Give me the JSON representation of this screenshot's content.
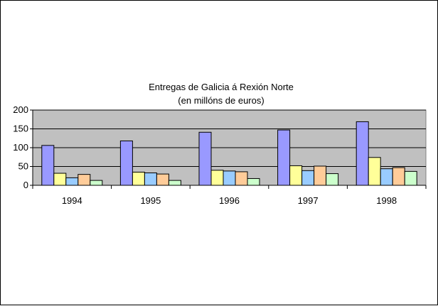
{
  "chart_data": {
    "type": "bar",
    "title": "Entregas de Galicia á Rexión Norte",
    "subtitle": "(en millóns de euros)",
    "xlabel": "",
    "ylabel": "",
    "categories": [
      "1994",
      "1995",
      "1996",
      "1997",
      "1998"
    ],
    "ylim": [
      0,
      200
    ],
    "yticks": [
      0,
      50,
      100,
      150,
      200
    ],
    "grid": true,
    "legend": "none",
    "plot_background": "#c0c0c0",
    "series": [
      {
        "values": [
          106,
          118,
          141,
          147,
          169
        ],
        "color": "#9999ff"
      },
      {
        "values": [
          32,
          35,
          40,
          52,
          74
        ],
        "color": "#ffff99"
      },
      {
        "values": [
          20,
          33,
          38,
          39,
          44
        ],
        "color": "#99ccff"
      },
      {
        "values": [
          29,
          30,
          36,
          51,
          47
        ],
        "color": "#ffcc99"
      },
      {
        "values": [
          13,
          13,
          18,
          31,
          37
        ],
        "color": "#ccffcc"
      }
    ]
  }
}
